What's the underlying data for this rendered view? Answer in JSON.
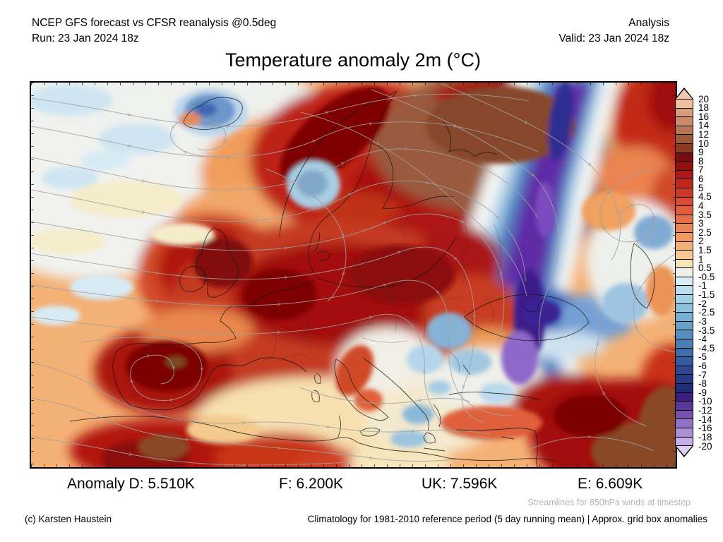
{
  "header": {
    "left_line1": "NCEP GFS forecast vs CFSR reanalysis @0.5deg",
    "left_line2": "Run: 23 Jan 2024 18z",
    "right_line1": "Analysis",
    "right_line2": "Valid: 23 Jan 2024 18z"
  },
  "title": "Temperature anomaly 2m (°C)",
  "map": {
    "description": "Europe 2m temperature anomaly shaded field with 850hPa wind streamlines"
  },
  "colorbar": {
    "unit": "°C",
    "labels": [
      "20",
      "18",
      "16",
      "14",
      "12",
      "10",
      "9",
      "8",
      "7",
      "6",
      "5",
      "4.5",
      "4",
      "3.5",
      "3",
      "2.5",
      "2",
      "1.5",
      "1",
      "0.5",
      "-0.5",
      "-1",
      "-1.5",
      "-2",
      "-2.5",
      "-3",
      "-3.5",
      "-4",
      "-4.5",
      "-5",
      "-6",
      "-7",
      "-8",
      "-9",
      "-10",
      "-12",
      "-14",
      "-16",
      "-18",
      "-20"
    ],
    "segment_colors": [
      "#f0bf9e",
      "#d99d7e",
      "#ca8a6a",
      "#b87656",
      "#9d5838",
      "#8c3a20",
      "#780c0c",
      "#950e0e",
      "#ad1717",
      "#c12619",
      "#ce3826",
      "#d94a32",
      "#e15c3c",
      "#e76f48",
      "#ed8454",
      "#f19962",
      "#f5b078",
      "#f8c990",
      "#f6e3b6",
      "#f0f0ea",
      "#d9edf5",
      "#badeee",
      "#a2d0e6",
      "#8cc0dc",
      "#77b0d2",
      "#64a0c8",
      "#568ec0",
      "#4b7eb6",
      "#406cac",
      "#365aa0",
      "#2d4892",
      "#263a86",
      "#232a74",
      "#3c1d80",
      "#5c3598",
      "#7950b0",
      "#9371c6",
      "#ad8fd8",
      "#c4aee6"
    ],
    "arrow_top_color": "#f3c9ae",
    "arrow_bottom_color": "#dbcff2"
  },
  "anomaly_stats": {
    "items": [
      {
        "label": "Anomaly D",
        "value": "5.510K"
      },
      {
        "label": "F",
        "value": "6.200K"
      },
      {
        "label": "UK",
        "value": "7.596K"
      },
      {
        "label": "E",
        "value": "6.609K"
      }
    ]
  },
  "footer": {
    "streamlines_note": "Streamlines for 850hPa winds at timestep",
    "copyright": "(c) Karsten Haustein",
    "climatology_note": "Climatology for 1981-2010 reference period (5 day running mean) | Approx. grid box anomalies"
  }
}
